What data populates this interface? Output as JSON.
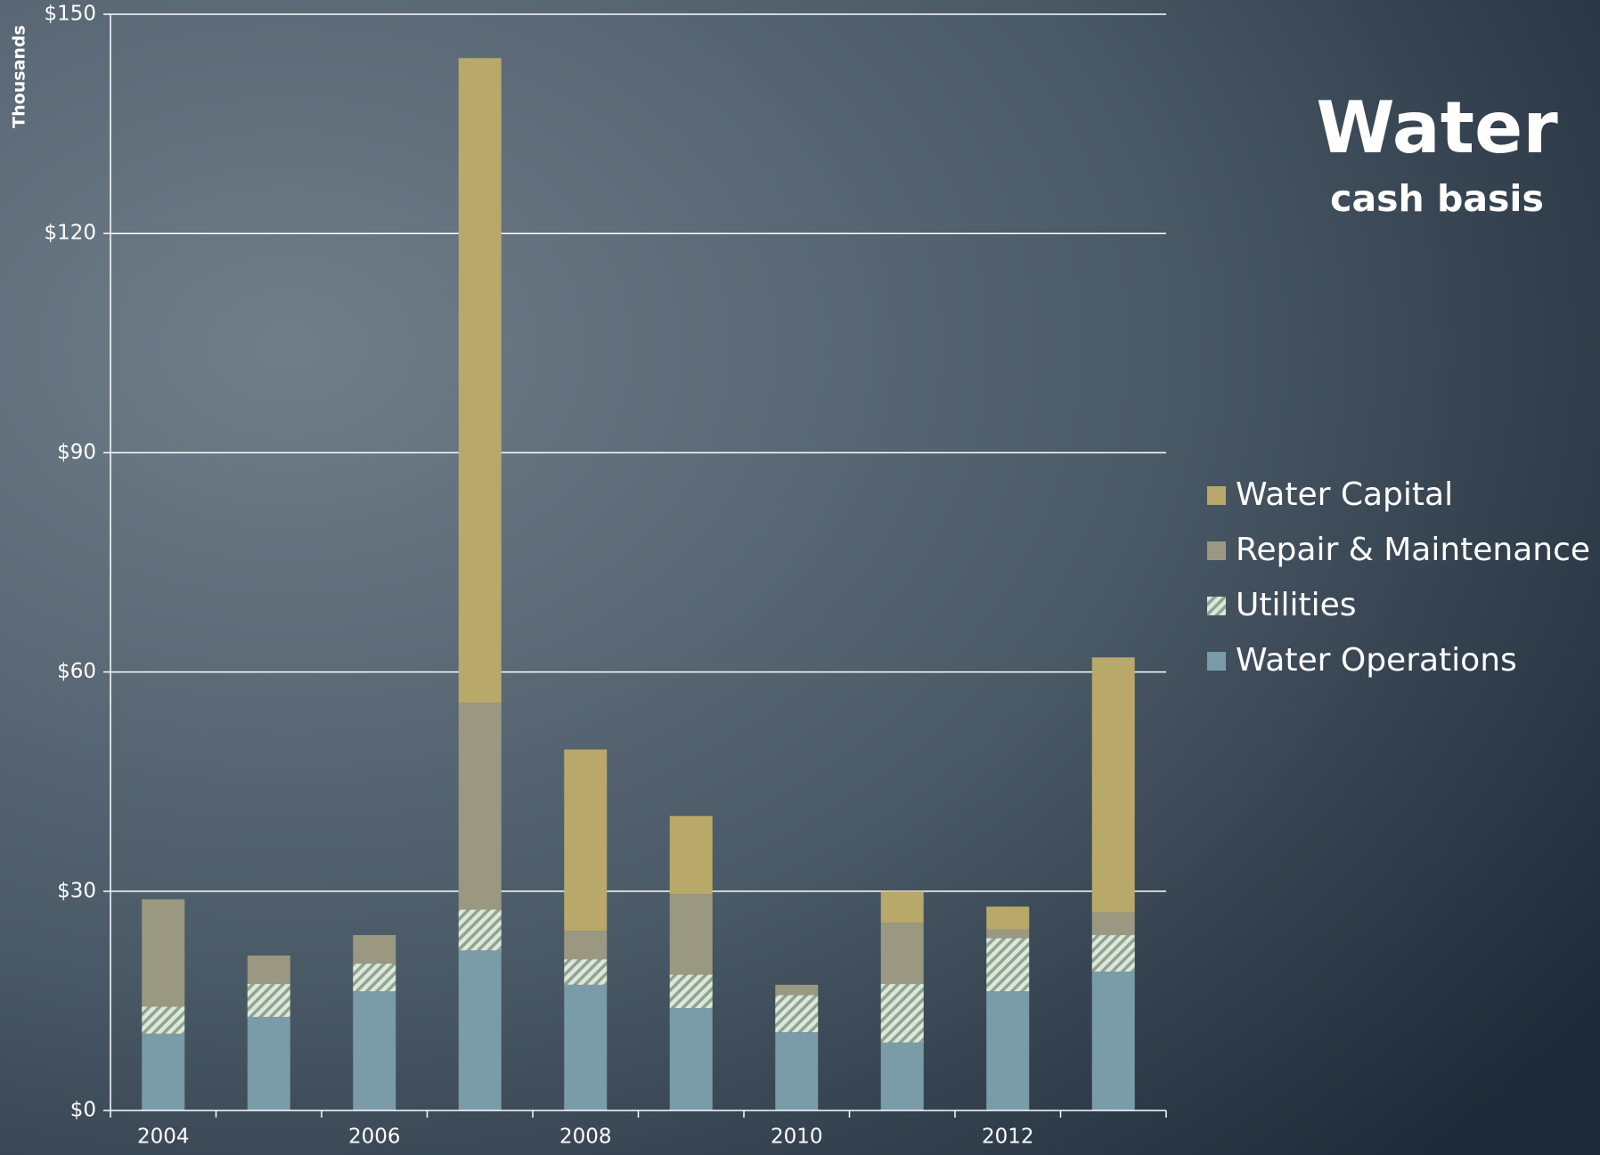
{
  "chart_data": {
    "type": "stacked_bar",
    "title": "Water",
    "subtitle": "cash basis",
    "y_axis_label": "Thousands",
    "categories": [
      "2004",
      null,
      "2006",
      null,
      "2008",
      null,
      "2010",
      null,
      "2012",
      null
    ],
    "series": [
      {
        "name": "Water Operations",
        "color": "#7a9ba8",
        "values": [
          10.5,
          12.8,
          16.3,
          21.9,
          17.2,
          14.0,
          10.7,
          9.3,
          16.3,
          19.0
        ]
      },
      {
        "name": "Utilities",
        "color": "#dde8d6",
        "pattern": "hatch",
        "values": [
          3.7,
          4.5,
          3.8,
          5.6,
          3.5,
          4.6,
          5.1,
          8.0,
          7.3,
          5.0
        ]
      },
      {
        "name": "Repair & Maintenance",
        "color": "#9a9880",
        "values": [
          14.7,
          3.9,
          3.9,
          28.3,
          3.9,
          11.0,
          1.4,
          8.4,
          1.2,
          3.1
        ]
      },
      {
        "name": "Water Capital",
        "color": "#b8a86a",
        "values": [
          0,
          0,
          0,
          88.2,
          24.8,
          10.7,
          0,
          4.3,
          3.1,
          34.9
        ]
      }
    ],
    "ylim": [
      0,
      150
    ],
    "yticks": [
      {
        "value": 0,
        "label": "$0"
      },
      {
        "value": 30,
        "label": "$30"
      },
      {
        "value": 60,
        "label": "$60"
      },
      {
        "value": 90,
        "label": "$90"
      },
      {
        "value": 120,
        "label": "$120"
      },
      {
        "value": 150,
        "label": "$150"
      }
    ],
    "grid": true,
    "legend": "right"
  }
}
